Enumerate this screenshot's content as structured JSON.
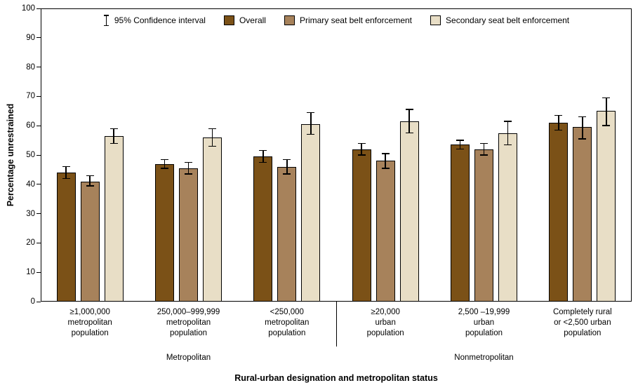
{
  "chart_data": {
    "type": "bar",
    "title": "",
    "ylabel": "Percentage unrestrained",
    "xlabel": "Rural-urban designation and metropolitan status",
    "ylim": [
      0,
      100
    ],
    "ytick_interval": 10,
    "grid": false,
    "legend_position": "top-inside",
    "ci_legend_label": "95% Confidence interval",
    "categories": [
      [
        "≥1,000,000",
        "metropolitan",
        "population"
      ],
      [
        "250,000–999,999",
        "metropolitan",
        "population"
      ],
      [
        "<250,000",
        "metropolitan",
        "population"
      ],
      [
        "≥20,000",
        "urban",
        "population"
      ],
      [
        "2,500 –19,999",
        "urban",
        "population"
      ],
      [
        "Completely rural",
        "or <2,500 urban",
        "population"
      ]
    ],
    "category_groups": [
      {
        "label": "Metropolitan",
        "start": 0,
        "end": 2
      },
      {
        "label": "Nonmetropolitan",
        "start": 3,
        "end": 5
      }
    ],
    "series": [
      {
        "name": "Overall",
        "color": "#7B5117",
        "values": [
          44,
          47,
          49.5,
          52,
          53.5,
          61
        ],
        "ci_low": [
          42,
          45.5,
          47.5,
          50,
          52,
          58.5
        ],
        "ci_high": [
          46,
          48.5,
          51.5,
          54,
          55,
          63.5
        ]
      },
      {
        "name": "Primary seat belt enforcement",
        "color": "#A7825B",
        "values": [
          41,
          45.5,
          46,
          48,
          52,
          59.5
        ],
        "ci_low": [
          39.5,
          43.5,
          43.5,
          45.5,
          50,
          55.5
        ],
        "ci_high": [
          43,
          47.5,
          48.5,
          50.5,
          54,
          63
        ]
      },
      {
        "name": "Secondary seat belt enforcement",
        "color": "#E8DEC6",
        "values": [
          56.5,
          56,
          60.5,
          61.5,
          57.5,
          65
        ],
        "ci_low": [
          54,
          53,
          57,
          57.5,
          53.5,
          60
        ],
        "ci_high": [
          59,
          59,
          64.5,
          65.5,
          61.5,
          69.5
        ]
      }
    ]
  }
}
